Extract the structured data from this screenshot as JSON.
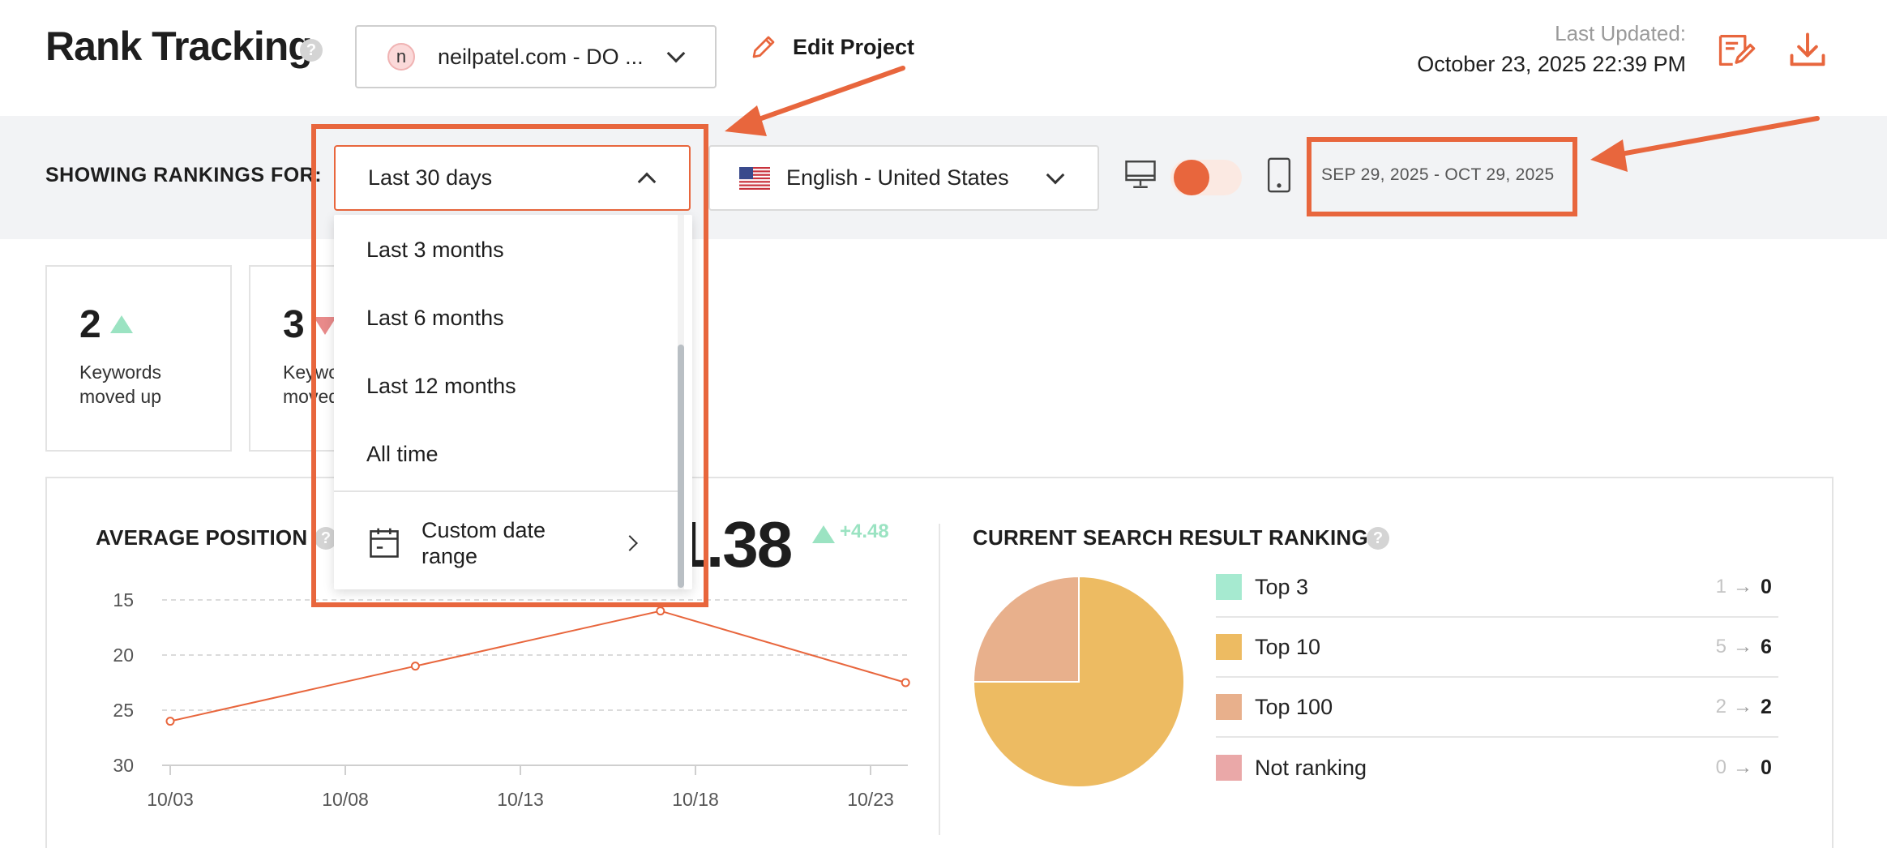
{
  "header": {
    "title": "Rank Tracking",
    "help": "?",
    "project": {
      "avatar_letter": "n",
      "label": "neilpatel.com - DO ..."
    },
    "edit_project": "Edit Project",
    "last_updated_label": "Last Updated:",
    "last_updated_value": "October 23, 2025 22:39 PM",
    "icons": [
      "report-icon",
      "download-icon"
    ]
  },
  "filters": {
    "label": "SHOWING RANKINGS FOR:",
    "range_selected": "Last 30 days",
    "language": "English - United States",
    "device_icons": [
      "desktop-icon",
      "mobile-icon"
    ],
    "date_range": "SEP 29, 2025 - OCT 29, 2025"
  },
  "range_menu": {
    "items": [
      "Last 3 months",
      "Last 6 months",
      "Last 12 months",
      "All time"
    ],
    "custom": "Custom date range"
  },
  "stats": [
    {
      "value": "2",
      "text": "Keywords moved up",
      "direction": "up"
    },
    {
      "value": "3",
      "text": "Keywords moved",
      "direction": "down"
    }
  ],
  "average_position": {
    "title": "AVERAGE POSITION",
    "value": "21.38",
    "delta": "+4.48"
  },
  "chart_data": {
    "type": "line",
    "x": [
      "10/03",
      "10/08",
      "10/13",
      "10/18",
      "10/23"
    ],
    "series": [
      {
        "points": [
          [
            "10/03",
            26
          ],
          [
            "10/10",
            21
          ],
          [
            "10/17",
            16
          ],
          [
            "10/24",
            22.5
          ]
        ]
      }
    ],
    "yticks": [
      "15",
      "20",
      "25",
      "30"
    ],
    "ylim": [
      15,
      30
    ],
    "y_inverted": true,
    "grid": true,
    "color": "#e8663d"
  },
  "rankings": {
    "title": "CURRENT SEARCH RESULT RANKINGS",
    "rows": [
      {
        "name": "Top 3",
        "from": "1",
        "to": "0",
        "color": "#a6ead0"
      },
      {
        "name": "Top 10",
        "from": "5",
        "to": "6",
        "color": "#edbb62"
      },
      {
        "name": "Top 100",
        "from": "2",
        "to": "2",
        "color": "#e8b08c"
      },
      {
        "name": "Not ranking",
        "from": "0",
        "to": "0",
        "color": "#eaa8a8"
      }
    ],
    "arrow": "→"
  },
  "pie_data": {
    "type": "pie",
    "slices": [
      {
        "label": "Top 10",
        "value": 6,
        "color": "#edbb62"
      },
      {
        "label": "Top 100",
        "value": 2,
        "color": "#e8b08c"
      }
    ]
  },
  "colors": {
    "accent": "#e8663d",
    "up": "#9be3c2",
    "down": "#e88a8a"
  }
}
